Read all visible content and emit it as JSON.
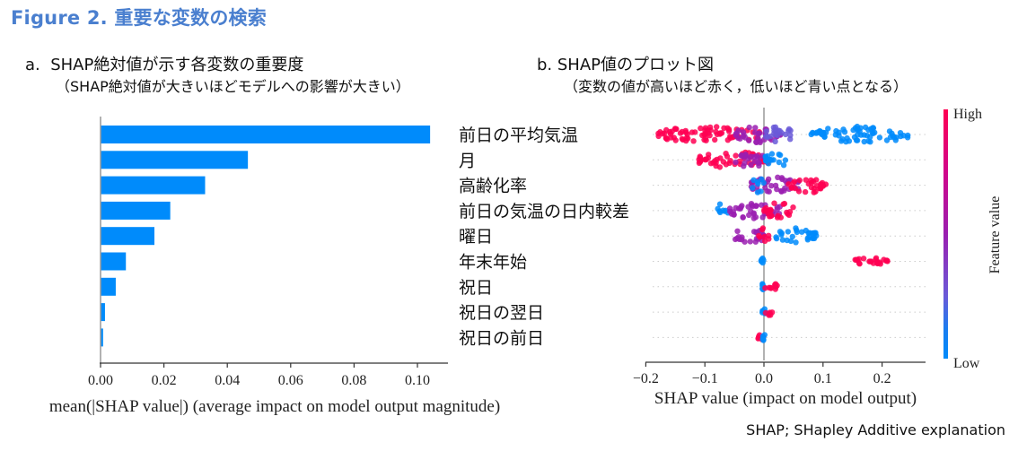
{
  "figure": {
    "title": "Figure 2. 重要な変数の検索",
    "footnote": "SHAP; SHapley Additive explanation"
  },
  "panel_a": {
    "title": "a.  SHAP絶対値が示す各変数の重要度",
    "subtitle": "（SHAP絶対値が大きいほどモデルへの影響が大きい）"
  },
  "panel_b": {
    "title": "b. SHAP値のプロット図",
    "subtitle": "（変数の値が高いほど赤く，低いほど青い点となる）"
  },
  "colors": {
    "title_blue": "#4a7fcf",
    "bar_blue": "#008bfb",
    "shap_high": "#ff0052",
    "shap_mid": "#9a1fb0",
    "shap_low": "#008bfb",
    "axis": "#333333"
  },
  "chart_data": [
    {
      "type": "bar",
      "orientation": "horizontal",
      "categories": [
        "前日の平均気温",
        "月",
        "高齢化率",
        "前日の気温の日内較差",
        "曜日",
        "年末年始",
        "祝日",
        "祝日の翌日",
        "祝日の前日"
      ],
      "values": [
        0.104,
        0.0465,
        0.033,
        0.022,
        0.017,
        0.008,
        0.0048,
        0.0014,
        0.0008
      ],
      "xlabel": "mean(|SHAP value|) (average impact on model output magnitude)",
      "ylabel": "",
      "xlim": [
        0,
        0.11
      ],
      "xticks": [
        0.0,
        0.02,
        0.04,
        0.06,
        0.08,
        0.1
      ],
      "xtick_labels": [
        "0.00",
        "0.02",
        "0.04",
        "0.06",
        "0.08",
        "0.10"
      ],
      "grid": false
    },
    {
      "type": "scatter",
      "subtype": "beeswarm",
      "categories": [
        "前日の平均気温",
        "月",
        "高齢化率",
        "前日の気温の日内較差",
        "曜日",
        "年末年始",
        "祝日",
        "祝日の翌日",
        "祝日の前日"
      ],
      "series": [
        {
          "feature": "前日の平均気温",
          "ranges": [
            {
              "from": -0.18,
              "to": 0.0,
              "value": "high"
            },
            {
              "from": -0.05,
              "to": 0.03,
              "value": "mid"
            },
            {
              "from": 0.0,
              "to": 0.05,
              "value": "mid-low"
            },
            {
              "from": 0.08,
              "to": 0.25,
              "value": "low"
            }
          ]
        },
        {
          "feature": "月",
          "ranges": [
            {
              "from": -0.11,
              "to": 0.01,
              "value": "high"
            },
            {
              "from": -0.05,
              "to": 0.0,
              "value": "mid"
            },
            {
              "from": 0.0,
              "to": 0.04,
              "value": "low"
            }
          ]
        },
        {
          "feature": "高齢化率",
          "ranges": [
            {
              "from": -0.03,
              "to": 0.06,
              "value": "mid"
            },
            {
              "from": 0.04,
              "to": 0.11,
              "value": "high"
            },
            {
              "from": -0.02,
              "to": 0.0,
              "value": "low"
            }
          ]
        },
        {
          "feature": "前日の気温の日内較差",
          "ranges": [
            {
              "from": -0.08,
              "to": -0.06,
              "value": "low"
            },
            {
              "from": -0.06,
              "to": 0.03,
              "value": "mid"
            },
            {
              "from": 0.0,
              "to": 0.05,
              "value": "high"
            }
          ]
        },
        {
          "feature": "曜日",
          "ranges": [
            {
              "from": -0.05,
              "to": 0.0,
              "value": "mid"
            },
            {
              "from": -0.01,
              "to": 0.01,
              "value": "high"
            },
            {
              "from": 0.02,
              "to": 0.09,
              "value": "low"
            }
          ]
        },
        {
          "feature": "年末年始",
          "ranges": [
            {
              "from": -0.005,
              "to": 0.0,
              "value": "low"
            },
            {
              "from": 0.15,
              "to": 0.21,
              "value": "high"
            }
          ]
        },
        {
          "feature": "祝日",
          "ranges": [
            {
              "from": -0.005,
              "to": 0.0,
              "value": "low"
            },
            {
              "from": 0.0,
              "to": 0.025,
              "value": "high"
            }
          ]
        },
        {
          "feature": "祝日の翌日",
          "ranges": [
            {
              "from": -0.003,
              "to": 0.003,
              "value": "low"
            },
            {
              "from": 0.0,
              "to": 0.015,
              "value": "high"
            }
          ]
        },
        {
          "feature": "祝日の前日",
          "ranges": [
            {
              "from": -0.01,
              "to": 0.0,
              "value": "high"
            },
            {
              "from": -0.003,
              "to": 0.004,
              "value": "low"
            }
          ]
        }
      ],
      "xlabel": "SHAP value (impact on model output)",
      "xlim": [
        -0.2,
        0.27
      ],
      "xticks": [
        -0.2,
        -0.1,
        0.0,
        0.1,
        0.2
      ],
      "xtick_labels": [
        "−0.2",
        "−0.1",
        "0.0",
        "0.1",
        "0.2"
      ],
      "colorbar": {
        "label": "Feature value",
        "high_label": "High",
        "low_label": "Low"
      },
      "grid": false
    }
  ]
}
